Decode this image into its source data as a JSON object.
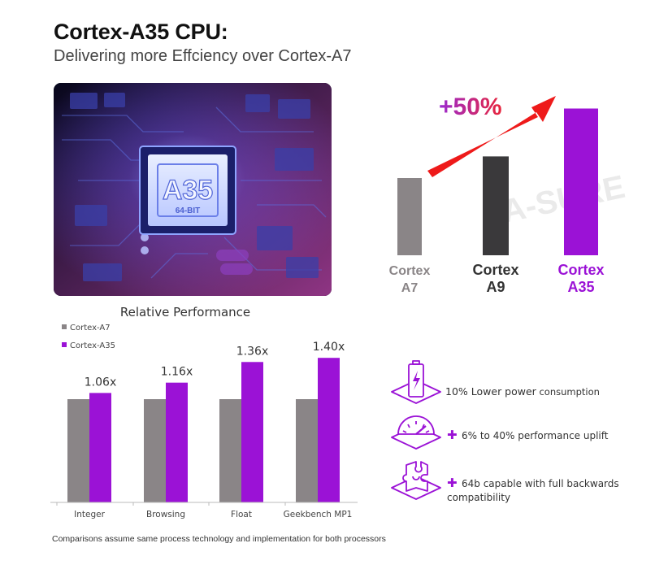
{
  "header": {
    "title": "Cortex-A35 CPU:",
    "subtitle": "Delivering more Effciency over Cortex-A7"
  },
  "chip_image": {
    "chip_label": "A35",
    "chip_sublabel": "64-BIT"
  },
  "watermark": {
    "text": "A-SURE"
  },
  "colors": {
    "gray": "#8a8587",
    "dark": "#3a393b",
    "purple": "#9b12d6",
    "arrow": "#ee1a1a"
  },
  "chart_data": [
    {
      "type": "bar",
      "categories": [
        "Cortex A7",
        "Cortex A9",
        "Cortex A35"
      ],
      "category_lines": [
        [
          "Cortex",
          "A7"
        ],
        [
          "Cortex",
          "A9"
        ],
        [
          "Cortex",
          "A35"
        ]
      ],
      "values": [
        1.0,
        1.28,
        1.9
      ],
      "bar_colors": [
        "#8a8587",
        "#3a393b",
        "#9b12d6"
      ],
      "label_colors": [
        "#8a8587",
        "#333333",
        "#9b12d6"
      ],
      "annotation": "+50%",
      "title": "",
      "xlabel": "",
      "ylabel": "",
      "ylim": [
        0,
        2.0
      ],
      "grid": false
    },
    {
      "type": "bar",
      "title": "Relative Performance",
      "categories": [
        "Integer",
        "Browsing",
        "Float",
        "Geekbench MP1"
      ],
      "series": [
        {
          "name": "Cortex-A7",
          "color": "#8a8587",
          "values": [
            1.0,
            1.0,
            1.0,
            1.0
          ]
        },
        {
          "name": "Cortex-A35",
          "color": "#9b12d6",
          "values": [
            1.06,
            1.16,
            1.36,
            1.4
          ]
        }
      ],
      "data_labels": [
        "1.06x",
        "1.16x",
        "1.36x",
        "1.40x"
      ],
      "legend_position": "top-left",
      "xlabel": "",
      "ylabel": "",
      "ylim": [
        0,
        1.6
      ],
      "grid": false
    }
  ],
  "features": [
    {
      "icon": "battery-icon",
      "lead": "10% Lower power",
      "text": " consumption",
      "plus": false
    },
    {
      "icon": "speedometer-icon",
      "lead": "",
      "text": "6% to 40% performance uplift",
      "plus": true
    },
    {
      "icon": "puzzle-icon",
      "lead": "",
      "text": "64b capable with full backwards compatibility",
      "plus": true,
      "lines": [
        "64b capable with full backwards",
        "compatibility"
      ]
    }
  ],
  "footnote": "Comparisons assume same process technology and implementation for both processors"
}
